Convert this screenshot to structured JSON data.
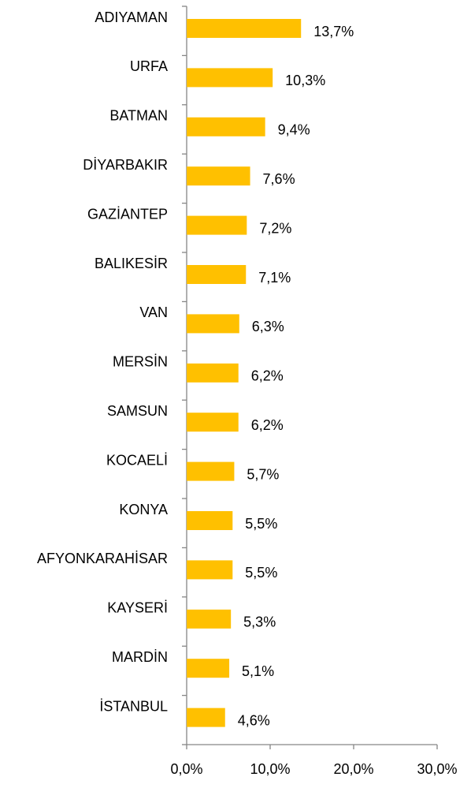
{
  "chart_data": {
    "type": "bar",
    "orientation": "horizontal",
    "categories": [
      "ADIYAMAN",
      "URFA",
      "BATMAN",
      "DİYARBAKIR",
      "GAZİANTEP",
      "BALIKESİR",
      "VAN",
      "MERSİN",
      "SAMSUN",
      "KOCAELİ",
      "KONYA",
      "AFYONKARAHİSAR",
      "KAYSERİ",
      "MARDİN",
      "İSTANBUL"
    ],
    "values": [
      13.7,
      10.3,
      9.4,
      7.6,
      7.2,
      7.1,
      6.3,
      6.2,
      6.2,
      5.7,
      5.5,
      5.5,
      5.3,
      5.1,
      4.6
    ],
    "value_labels": [
      "13,7%",
      "10,3%",
      "9,4%",
      "7,6%",
      "7,2%",
      "7,1%",
      "6,3%",
      "6,2%",
      "6,2%",
      "5,7%",
      "5,5%",
      "5,5%",
      "5,3%",
      "5,1%",
      "4,6%"
    ],
    "color": "#FFC000",
    "xlim": [
      0,
      30
    ],
    "xticks": [
      {
        "value": 0,
        "label": "0,0%"
      },
      {
        "value": 10,
        "label": "10,0%"
      },
      {
        "value": 20,
        "label": "20,0%"
      },
      {
        "value": 30,
        "label": "30,0%"
      }
    ],
    "grid": false
  }
}
